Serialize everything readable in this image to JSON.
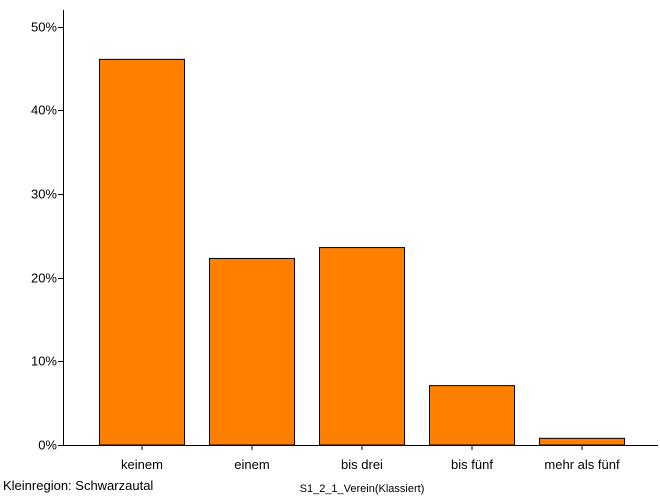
{
  "footer_note": "Kleinregion: Schwarzautal",
  "chart_data": {
    "type": "bar",
    "title": "",
    "xlabel": "S1_2_1_Verein(Klassiert)",
    "ylabel": "",
    "categories": [
      "keinem",
      "einem",
      "bis drei",
      "bis fünf",
      "mehr als fünf"
    ],
    "values": [
      46.1,
      22.3,
      23.6,
      7.1,
      0.8
    ],
    "unit": "%",
    "yticks": [
      "0%",
      "10%",
      "20%",
      "30%",
      "40%",
      "50%"
    ],
    "ylim": [
      0,
      52
    ],
    "grid": false,
    "legend": "none",
    "bar_color": "#ff7f00",
    "bar_edge_color": "#000000"
  }
}
